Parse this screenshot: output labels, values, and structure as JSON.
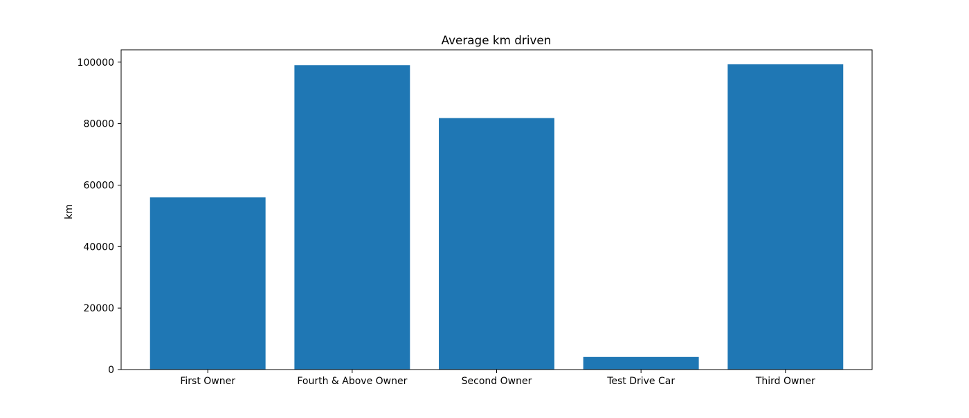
{
  "chart_data": {
    "type": "bar",
    "title": "Average km driven",
    "xlabel": "",
    "ylabel": "km",
    "categories": [
      "First Owner",
      "Fourth & Above Owner",
      "Second Owner",
      "Test Drive Car",
      "Third Owner"
    ],
    "values": [
      56000,
      99000,
      81800,
      4100,
      99300
    ],
    "ylim": [
      0,
      104000
    ],
    "yticks": [
      0,
      20000,
      40000,
      60000,
      80000,
      100000
    ],
    "ytick_labels": [
      "0",
      "20000",
      "40000",
      "60000",
      "80000",
      "100000"
    ],
    "bar_color": "#1f77b4",
    "grid": false,
    "legend": "none"
  }
}
